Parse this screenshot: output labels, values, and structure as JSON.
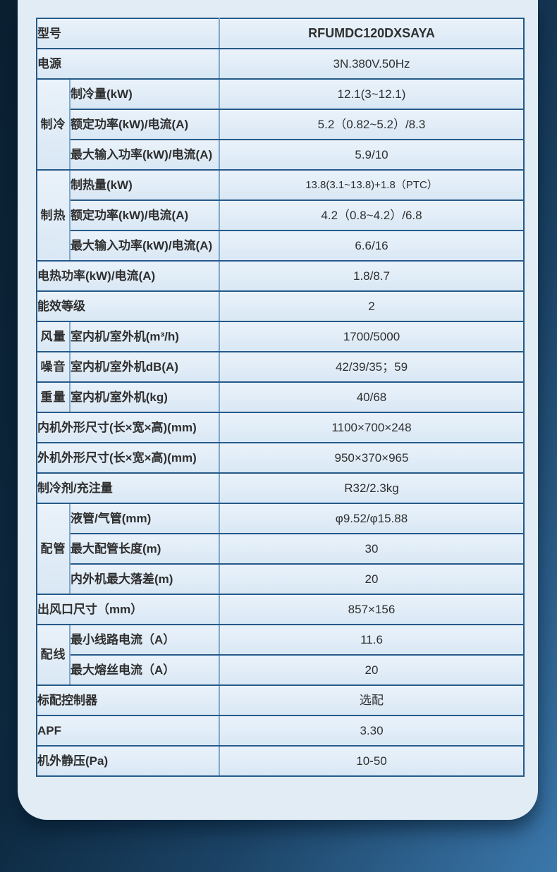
{
  "colors": {
    "background_dark": "#0b2132",
    "background_light": "#3b77ab",
    "panel_background": "#e2ecf5",
    "border_dark": "#265a89",
    "border_light": "#7fa7ca",
    "cell_background": "#dce9f5",
    "text": "#2f2f2f"
  },
  "table": {
    "rows": [
      {
        "full": true,
        "label": "型号",
        "value": "RFUMDC120DXSAYA",
        "value_bold": true
      },
      {
        "full": true,
        "label": "电源",
        "value": "3N.380V.50Hz"
      },
      {
        "group": {
          "text": "制冷",
          "rowspan": 3
        },
        "label": "制冷量(kW)",
        "value": "12.1(3~12.1)"
      },
      {
        "label": "额定功率(kW)/电流(A)",
        "value": "5.2（0.82~5.2）/8.3"
      },
      {
        "label": "最大输入功率(kW)/电流(A)",
        "value": "5.9/10"
      },
      {
        "group": {
          "text": "制热",
          "rowspan": 3
        },
        "label": "制热量(kW)",
        "value": "13.8(3.1~13.8)+1.8（PTC）",
        "value_small": true
      },
      {
        "label": "额定功率(kW)/电流(A)",
        "value": "4.2（0.8~4.2）/6.8"
      },
      {
        "label": "最大输入功率(kW)/电流(A)",
        "value": "6.6/16"
      },
      {
        "full": true,
        "label": "电热功率(kW)/电流(A)",
        "value": "1.8/8.7"
      },
      {
        "full": true,
        "label": "能效等级",
        "value": "2"
      },
      {
        "group": {
          "text": "风量",
          "rowspan": 1
        },
        "label": "室内机/室外机(m³/h)",
        "value": "1700/5000"
      },
      {
        "group": {
          "text": "噪音",
          "rowspan": 1
        },
        "label": "室内机/室外机dB(A)",
        "value": "42/39/35；59"
      },
      {
        "group": {
          "text": "重量",
          "rowspan": 1
        },
        "label": "室内机/室外机(kg)",
        "value": "40/68"
      },
      {
        "full": true,
        "label": "内机外形尺寸(长×宽×高)(mm)",
        "value": "1100×700×248"
      },
      {
        "full": true,
        "label": "外机外形尺寸(长×宽×高)(mm)",
        "value": "950×370×965"
      },
      {
        "full": true,
        "label": "制冷剂/充注量",
        "value": "R32/2.3kg"
      },
      {
        "group": {
          "text": "配管",
          "rowspan": 3
        },
        "label": "液管/气管(mm)",
        "value": "φ9.52/φ15.88"
      },
      {
        "label": "最大配管长度(m)",
        "value": "30"
      },
      {
        "label": "内外机最大落差(m)",
        "value": "20"
      },
      {
        "full": true,
        "label": "出风口尺寸（mm）",
        "value": "857×156"
      },
      {
        "group": {
          "text": "配线",
          "rowspan": 2
        },
        "label": "最小线路电流（A）",
        "value": "11.6"
      },
      {
        "label": "最大熔丝电流（A）",
        "value": "20"
      },
      {
        "full": true,
        "label": "标配控制器",
        "value": "选配"
      },
      {
        "full": true,
        "label": "APF",
        "value": "3.30"
      },
      {
        "full": true,
        "label": "机外静压(Pa)",
        "value": "10-50"
      }
    ]
  }
}
